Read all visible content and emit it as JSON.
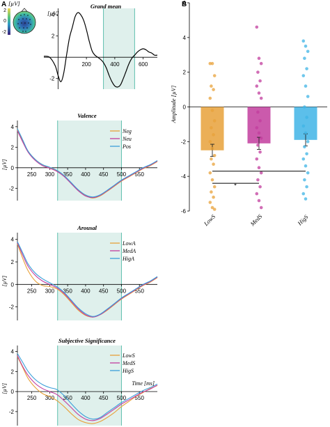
{
  "figure": {
    "panel_a_label": "A",
    "panel_b_label": "B",
    "time_axis_label": "Time [ms]"
  },
  "colors": {
    "neg": "#e8a13a",
    "neu": "#c23d9e",
    "pos": "#3a9fd9",
    "low": "#e8a13a",
    "med": "#c23d9e",
    "hig": "#3fb4e6",
    "window": "#dff0ec",
    "window_line": "#5fbfae"
  },
  "chart_data": [
    {
      "id": "grand-mean",
      "type": "line",
      "title": "Grand mean",
      "ylabel": "[µV]",
      "xlim": [
        -100,
        700
      ],
      "ylim": [
        -3,
        4.6
      ],
      "yticks": [
        -2,
        2,
        4
      ],
      "xticks": [
        200,
        400,
        600
      ],
      "analysis_window": [
        320,
        540
      ],
      "series": [
        {
          "x": [
            -100,
            -60,
            -20,
            0,
            20,
            40,
            60,
            80,
            100,
            120,
            140,
            160,
            180,
            200,
            220,
            240,
            260,
            280,
            300,
            320,
            340,
            360,
            380,
            400,
            420,
            440,
            460,
            480,
            500,
            520,
            540,
            560,
            580,
            600,
            620,
            640,
            660,
            680,
            700
          ],
          "y": [
            0.1,
            0.0,
            -0.8,
            -1.7,
            -2.3,
            -1.5,
            0.2,
            1.8,
            2.8,
            3.8,
            4.2,
            4.0,
            3.5,
            2.6,
            1.5,
            0.6,
            0.2,
            0.0,
            -0.2,
            -0.5,
            -1.0,
            -1.7,
            -2.3,
            -2.7,
            -2.8,
            -2.6,
            -2.0,
            -1.3,
            -0.6,
            -0.1,
            0.2,
            0.5,
            0.7,
            0.8,
            0.7,
            0.5,
            0.4,
            0.2,
            0.2
          ]
        }
      ],
      "topomap": {
        "colorbar_label": "[µV]",
        "colorbar_ticks": [
          "2",
          "0",
          "-2"
        ]
      }
    },
    {
      "id": "valence",
      "type": "line",
      "title": "Valence",
      "ylabel": "[µV]",
      "xlim": [
        210,
        600
      ],
      "ylim": [
        -3.2,
        4.6
      ],
      "yticks": [
        -2,
        0,
        2,
        4
      ],
      "xticks": [
        250,
        300,
        350,
        400,
        450,
        500,
        550
      ],
      "analysis_window": [
        322,
        500
      ],
      "x": [
        210,
        225,
        240,
        260,
        280,
        300,
        320,
        340,
        360,
        380,
        400,
        420,
        440,
        460,
        480,
        500,
        520,
        540,
        560,
        580,
        600
      ],
      "series": [
        {
          "name": "Neg",
          "color": "#e8a13a",
          "values": [
            3.7,
            2.6,
            1.6,
            0.8,
            0.3,
            0.0,
            -0.3,
            -0.8,
            -1.5,
            -2.2,
            -2.7,
            -2.95,
            -2.75,
            -2.3,
            -1.8,
            -1.3,
            -0.9,
            -0.5,
            -0.1,
            0.2,
            0.6
          ]
        },
        {
          "name": "Neu",
          "color": "#c23d9e",
          "values": [
            3.6,
            2.5,
            1.5,
            0.7,
            0.2,
            -0.05,
            -0.35,
            -0.85,
            -1.55,
            -2.25,
            -2.75,
            -2.9,
            -2.7,
            -2.25,
            -1.75,
            -1.25,
            -0.85,
            -0.45,
            -0.05,
            0.25,
            0.65
          ]
        },
        {
          "name": "Pos",
          "color": "#3a9fd9",
          "values": [
            3.8,
            2.7,
            1.6,
            0.8,
            0.3,
            0.05,
            -0.25,
            -0.75,
            -1.45,
            -2.15,
            -2.65,
            -2.85,
            -2.65,
            -2.2,
            -1.7,
            -1.2,
            -0.8,
            -0.4,
            0.0,
            0.3,
            0.7
          ]
        }
      ]
    },
    {
      "id": "arousal",
      "type": "line",
      "title": "Arousal",
      "ylabel": "[µV]",
      "xlim": [
        210,
        600
      ],
      "ylim": [
        -3.2,
        4.6
      ],
      "yticks": [
        -2,
        0,
        2,
        4
      ],
      "xticks": [
        250,
        300,
        350,
        400,
        450,
        500,
        550
      ],
      "analysis_window": [
        322,
        500
      ],
      "x": [
        210,
        225,
        240,
        260,
        280,
        300,
        320,
        340,
        360,
        380,
        400,
        420,
        440,
        460,
        480,
        500,
        520,
        540,
        560,
        580,
        600
      ],
      "series": [
        {
          "name": "LowA",
          "color": "#e8a13a",
          "values": [
            3.6,
            2.3,
            1.2,
            0.3,
            -0.1,
            -0.2,
            -0.4,
            -0.9,
            -1.6,
            -2.3,
            -2.75,
            -2.9,
            -2.7,
            -2.3,
            -1.8,
            -1.3,
            -0.9,
            -0.5,
            -0.1,
            0.2,
            0.6
          ]
        },
        {
          "name": "MedA",
          "color": "#c23d9e",
          "values": [
            3.7,
            2.6,
            1.6,
            0.8,
            0.3,
            0.0,
            -0.3,
            -0.8,
            -1.5,
            -2.2,
            -2.7,
            -2.9,
            -2.7,
            -2.25,
            -1.75,
            -1.25,
            -0.85,
            -0.45,
            -0.05,
            0.25,
            0.65
          ]
        },
        {
          "name": "HigA",
          "color": "#3a9fd9",
          "values": [
            3.8,
            2.8,
            1.8,
            1.0,
            0.5,
            0.15,
            -0.2,
            -0.7,
            -1.4,
            -2.1,
            -2.6,
            -2.85,
            -2.65,
            -2.2,
            -1.7,
            -1.2,
            -0.8,
            -0.4,
            0.0,
            0.3,
            0.7
          ]
        }
      ]
    },
    {
      "id": "subjective-significance",
      "type": "line",
      "title": "Subjective Significance",
      "ylabel": "[µV]",
      "xlim": [
        210,
        600
      ],
      "ylim": [
        -3.4,
        4.6
      ],
      "yticks": [
        -2,
        0,
        2,
        4
      ],
      "xticks": [
        250,
        300,
        350,
        400,
        450,
        500,
        550
      ],
      "analysis_window": [
        322,
        500
      ],
      "x": [
        210,
        225,
        240,
        260,
        280,
        300,
        320,
        340,
        360,
        380,
        400,
        420,
        440,
        460,
        480,
        500,
        520,
        540,
        560,
        580,
        600
      ],
      "series": [
        {
          "name": "LowS",
          "color": "#e8a13a",
          "values": [
            3.5,
            2.4,
            1.3,
            0.4,
            -0.2,
            -0.5,
            -0.9,
            -1.5,
            -2.2,
            -2.8,
            -3.1,
            -3.2,
            -3.0,
            -2.6,
            -2.1,
            -1.5,
            -1.0,
            -0.5,
            -0.1,
            0.3,
            0.6
          ]
        },
        {
          "name": "MedS",
          "color": "#c23d9e",
          "values": [
            3.6,
            2.5,
            1.6,
            0.8,
            0.3,
            0.0,
            -0.3,
            -0.9,
            -1.6,
            -2.3,
            -2.75,
            -2.9,
            -2.7,
            -2.25,
            -1.75,
            -1.25,
            -0.85,
            -0.45,
            -0.05,
            0.25,
            0.65
          ]
        },
        {
          "name": "HigS",
          "color": "#3a9fd9",
          "values": [
            3.8,
            2.9,
            2.0,
            1.2,
            0.7,
            0.4,
            0.2,
            -0.4,
            -1.2,
            -1.95,
            -2.5,
            -2.75,
            -2.6,
            -2.1,
            -1.6,
            -1.1,
            -0.7,
            -0.3,
            0.1,
            0.4,
            0.75
          ]
        }
      ]
    },
    {
      "id": "amplitude-bars",
      "type": "bar",
      "ylabel": "Amplitude [µV]",
      "ylim": [
        -6,
        6
      ],
      "yticks": [
        -6,
        -4,
        -2,
        0,
        2,
        4,
        6
      ],
      "categories": [
        "LowS",
        "MedS",
        "HigS"
      ],
      "values": [
        -2.5,
        -2.1,
        -1.9
      ],
      "errors": [
        0.35,
        0.35,
        0.35
      ],
      "significance_marker": "*",
      "comparisons": [
        {
          "from": 0,
          "to": 2,
          "y": -3.7
        },
        {
          "from": 0,
          "to": 1,
          "y": -4.4
        }
      ],
      "points": [
        [
          2.5,
          2.5,
          1.8,
          1.2,
          1.0,
          0.5,
          -0.2,
          -0.8,
          -1.2,
          -1.6,
          -2.0,
          -2.4,
          -2.8,
          -3.0,
          -3.3,
          -3.8,
          -4.2,
          -4.6,
          -4.9,
          -5.2,
          -5.5,
          -5.8,
          -5.9
        ],
        [
          4.6,
          2.8,
          2.5,
          2.0,
          1.5,
          1.2,
          0.8,
          0.5,
          -0.3,
          -0.8,
          -1.2,
          -1.5,
          -1.8,
          -2.2,
          -2.6,
          -3.0,
          -3.5,
          -3.8,
          -4.2,
          -4.6,
          -5.0,
          -5.4,
          -5.8
        ],
        [
          3.8,
          3.5,
          3.2,
          2.8,
          2.2,
          1.8,
          1.2,
          0.6,
          0.0,
          -0.6,
          -1.1,
          -1.5,
          -2.0,
          -2.3,
          -2.7,
          -3.0,
          -3.4,
          -3.8,
          -4.2,
          -4.6,
          -5.0,
          -5.3
        ]
      ]
    }
  ]
}
